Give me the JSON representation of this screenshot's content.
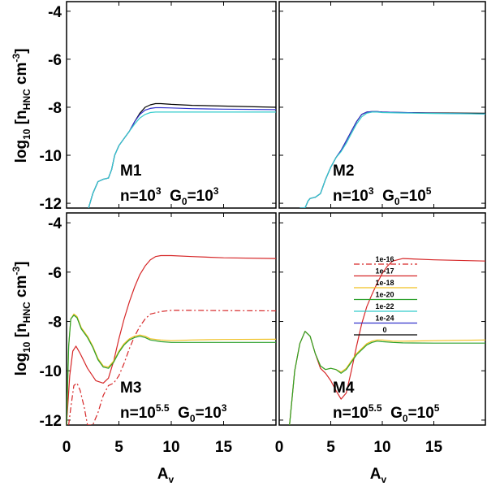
{
  "chart_data": {
    "type": "line",
    "x_label": "A",
    "x_label_sub": "v",
    "y_label_prefix": "log",
    "y_label_sub_10": "10",
    "y_label_main": " [n",
    "y_label_sub_species": "HNC",
    "y_label_unit": " cm",
    "y_label_sup": "-3",
    "y_label_close": "]",
    "xlim": [
      0,
      20
    ],
    "ylim": [
      -12.2,
      -3.6
    ],
    "x_ticks": [
      0,
      5,
      10,
      15
    ],
    "x_tick_labels": [
      "0",
      "5",
      "10",
      "15"
    ],
    "y_ticks": [
      -12,
      -10,
      -8,
      -6,
      -4
    ],
    "y_tick_labels": [
      "-12",
      "-10",
      "-8",
      "-6",
      "-4"
    ],
    "legend": {
      "placement": "right of panel M4",
      "entries": [
        {
          "label": "1e-16",
          "color": "#d62728",
          "dash": "dashdot"
        },
        {
          "label": "1e-17",
          "color": "#d62728",
          "dash": "solid"
        },
        {
          "label": "1e-18",
          "color": "#f0c020",
          "dash": "solid"
        },
        {
          "label": "1e-20",
          "color": "#2ca02c",
          "dash": "solid"
        },
        {
          "label": "1e-22",
          "color": "#33cccc",
          "dash": "solid"
        },
        {
          "label": "1e-24",
          "color": "#3333cc",
          "dash": "solid"
        },
        {
          "label": "0",
          "color": "#000000",
          "dash": "solid"
        }
      ]
    },
    "panels": [
      {
        "id": "M1",
        "model": "M1",
        "n_base": "n=10",
        "n_exp": "3",
        "g_base": "G",
        "g_sub": "0",
        "g_eq": "=10",
        "g_exp": "3",
        "series": [
          {
            "name": "0",
            "color": "#000000",
            "dash": "solid",
            "x": [
              2.1,
              2.5,
              3.0,
              3.5,
              4.0,
              4.3,
              4.6,
              5.0,
              5.5,
              6.0,
              6.5,
              7.0,
              7.5,
              8.0,
              8.5,
              9.0,
              10,
              12,
              15,
              20
            ],
            "y": [
              -12.2,
              -11.6,
              -11.1,
              -11.0,
              -10.95,
              -10.6,
              -10.0,
              -9.6,
              -9.3,
              -9.0,
              -8.6,
              -8.25,
              -8.0,
              -7.9,
              -7.85,
              -7.85,
              -7.88,
              -7.92,
              -7.95,
              -8.0
            ]
          },
          {
            "name": "1e-24",
            "color": "#3333cc",
            "dash": "solid",
            "x": [
              2.1,
              2.5,
              3.0,
              3.5,
              4.0,
              4.3,
              4.6,
              5.0,
              5.5,
              6.0,
              6.5,
              7.0,
              7.5,
              8.0,
              8.5,
              9.0,
              10,
              12,
              15,
              20
            ],
            "y": [
              -12.2,
              -11.6,
              -11.1,
              -11.0,
              -10.95,
              -10.6,
              -10.0,
              -9.6,
              -9.3,
              -9.0,
              -8.6,
              -8.3,
              -8.12,
              -8.05,
              -8.02,
              -8.02,
              -8.03,
              -8.06,
              -8.08,
              -8.1
            ]
          },
          {
            "name": "1e-22",
            "color": "#33cccc",
            "dash": "solid",
            "x": [
              2.1,
              2.5,
              3.0,
              3.5,
              4.0,
              4.3,
              4.6,
              5.0,
              5.5,
              6.0,
              6.5,
              7.0,
              7.5,
              8.0,
              8.5,
              9.0,
              10,
              12,
              15,
              20
            ],
            "y": [
              -12.2,
              -11.6,
              -11.1,
              -11.0,
              -10.95,
              -10.6,
              -10.0,
              -9.6,
              -9.3,
              -9.0,
              -8.7,
              -8.45,
              -8.3,
              -8.22,
              -8.2,
              -8.2,
              -8.2,
              -8.2,
              -8.2,
              -8.2
            ]
          }
        ]
      },
      {
        "id": "M2",
        "model": "M2",
        "n_base": "n=10",
        "n_exp": "3",
        "g_base": "G",
        "g_sub": "0",
        "g_eq": "=10",
        "g_exp": "5",
        "series": [
          {
            "name": "0",
            "color": "#000000",
            "dash": "solid",
            "x": [
              2.0,
              2.5,
              2.8,
              3.0,
              3.5,
              4.0,
              4.5,
              5.0,
              5.5,
              6.0,
              6.5,
              7.0,
              7.5,
              8.0,
              8.5,
              9.0,
              9.5,
              10,
              12,
              15,
              20
            ],
            "y": [
              -12.2,
              -12.2,
              -11.9,
              -11.8,
              -11.75,
              -11.6,
              -11.0,
              -10.5,
              -10.1,
              -9.8,
              -9.4,
              -9.0,
              -8.6,
              -8.3,
              -8.2,
              -8.18,
              -8.18,
              -8.2,
              -8.22,
              -8.24,
              -8.25
            ]
          },
          {
            "name": "1e-24",
            "color": "#3333cc",
            "dash": "solid",
            "x": [
              2.0,
              2.5,
              2.8,
              3.0,
              3.5,
              4.0,
              4.5,
              5.0,
              5.5,
              6.0,
              6.5,
              7.0,
              7.5,
              8.0,
              8.5,
              9.0,
              9.5,
              10,
              12,
              15,
              20
            ],
            "y": [
              -12.2,
              -12.2,
              -11.9,
              -11.8,
              -11.75,
              -11.6,
              -11.0,
              -10.5,
              -10.1,
              -9.8,
              -9.4,
              -9.0,
              -8.6,
              -8.3,
              -8.2,
              -8.18,
              -8.18,
              -8.2,
              -8.22,
              -8.25,
              -8.28
            ]
          },
          {
            "name": "1e-22",
            "color": "#33cccc",
            "dash": "solid",
            "x": [
              2.0,
              2.5,
              2.8,
              3.0,
              3.5,
              4.0,
              4.5,
              5.0,
              5.5,
              6.0,
              6.5,
              7.0,
              7.5,
              8.0,
              8.5,
              9.0,
              9.5,
              10,
              12,
              15,
              20
            ],
            "y": [
              -12.2,
              -12.2,
              -11.9,
              -11.8,
              -11.75,
              -11.6,
              -11.0,
              -10.5,
              -10.1,
              -9.85,
              -9.5,
              -9.1,
              -8.7,
              -8.4,
              -8.25,
              -8.2,
              -8.2,
              -8.22,
              -8.24,
              -8.26,
              -8.28
            ]
          }
        ]
      },
      {
        "id": "M3",
        "model": "M3",
        "n_base": "n=10",
        "n_exp": "5.5",
        "g_base": "G",
        "g_sub": "0",
        "g_eq": "=10",
        "g_exp": "3",
        "series": [
          {
            "name": "1e-16",
            "color": "#d62728",
            "dash": "dashdot",
            "x": [
              0.2,
              0.4,
              0.7,
              1.0,
              1.3,
              1.7,
              2.0,
              2.5,
              3.0,
              3.5,
              4.0,
              4.5,
              5.0,
              5.5,
              6.0,
              6.5,
              7.0,
              7.5,
              8.0,
              9.0,
              10,
              12,
              15,
              20
            ],
            "y": [
              -12.2,
              -11.5,
              -10.6,
              -10.5,
              -10.8,
              -11.5,
              -12.2,
              -12.2,
              -11.7,
              -11.0,
              -10.6,
              -10.5,
              -10.2,
              -9.7,
              -9.1,
              -8.6,
              -8.2,
              -7.9,
              -7.7,
              -7.6,
              -7.55,
              -7.55,
              -7.56,
              -7.57
            ]
          },
          {
            "name": "1e-17",
            "color": "#d62728",
            "dash": "solid",
            "x": [
              0.0,
              0.3,
              0.6,
              0.9,
              1.3,
              2.0,
              2.8,
              3.5,
              4.0,
              4.5,
              5.0,
              5.5,
              6.0,
              6.5,
              7.0,
              7.5,
              8.0,
              8.5,
              9.0,
              10,
              12,
              15,
              20
            ],
            "y": [
              -12.2,
              -10.2,
              -9.2,
              -9.0,
              -9.3,
              -9.9,
              -10.4,
              -10.5,
              -10.3,
              -9.6,
              -8.7,
              -7.9,
              -7.2,
              -6.6,
              -6.1,
              -5.75,
              -5.5,
              -5.37,
              -5.33,
              -5.33,
              -5.37,
              -5.42,
              -5.45
            ]
          },
          {
            "name": "1e-18",
            "color": "#f0c020",
            "dash": "solid",
            "x": [
              0.0,
              0.2,
              0.4,
              0.7,
              1.0,
              1.4,
              2.0,
              2.5,
              3.0,
              3.5,
              4.0,
              4.5,
              5.0,
              5.5,
              6.0,
              6.5,
              7.0,
              7.5,
              8.0,
              9.0,
              10,
              12,
              15,
              20
            ],
            "y": [
              -12.2,
              -9.0,
              -7.9,
              -7.7,
              -7.8,
              -8.25,
              -8.6,
              -9.0,
              -9.5,
              -9.8,
              -9.85,
              -9.6,
              -9.2,
              -8.9,
              -8.7,
              -8.6,
              -8.55,
              -8.6,
              -8.7,
              -8.75,
              -8.78,
              -8.75,
              -8.73,
              -8.72
            ]
          },
          {
            "name": "1e-20",
            "color": "#2ca02c",
            "dash": "solid",
            "x": [
              0.0,
              0.2,
              0.4,
              0.7,
              1.0,
              1.4,
              2.0,
              2.5,
              3.0,
              3.5,
              4.0,
              4.5,
              5.0,
              5.5,
              6.0,
              6.5,
              7.0,
              7.5,
              8.0,
              9.0,
              10,
              12,
              15,
              20
            ],
            "y": [
              -12.2,
              -9.0,
              -7.9,
              -7.75,
              -7.85,
              -8.3,
              -8.65,
              -9.05,
              -9.55,
              -9.85,
              -9.9,
              -9.65,
              -9.25,
              -8.95,
              -8.75,
              -8.65,
              -8.6,
              -8.65,
              -8.75,
              -8.82,
              -8.85,
              -8.85,
              -8.85,
              -8.85
            ]
          }
        ]
      },
      {
        "id": "M4",
        "model": "M4",
        "n_base": "n=10",
        "n_exp": "5.5",
        "g_base": "G",
        "g_sub": "0",
        "g_eq": "=10",
        "g_exp": "5",
        "series": [
          {
            "name": "1e-17",
            "color": "#d62728",
            "dash": "solid",
            "x": [
              1.0,
              1.5,
              2.0,
              2.5,
              3.0,
              3.5,
              4.0,
              4.5,
              5.0,
              5.5,
              6.0,
              6.5,
              7.0,
              7.5,
              8.0,
              8.5,
              9.0,
              9.5,
              10,
              10.5,
              11,
              12,
              15,
              20
            ],
            "y": [
              -12.2,
              -10.0,
              -8.9,
              -8.4,
              -8.6,
              -9.3,
              -9.9,
              -10.1,
              -10.4,
              -10.8,
              -11.15,
              -10.9,
              -10.0,
              -9.0,
              -8.1,
              -7.4,
              -6.9,
              -6.45,
              -6.05,
              -5.75,
              -5.55,
              -5.45,
              -5.5,
              -5.55
            ]
          },
          {
            "name": "1e-18",
            "color": "#f0c020",
            "dash": "solid",
            "x": [
              1.0,
              1.5,
              2.0,
              2.5,
              3.0,
              3.5,
              4.0,
              4.5,
              5.0,
              5.5,
              6.0,
              6.5,
              7.0,
              7.5,
              8.0,
              8.5,
              9.0,
              9.5,
              10,
              11,
              12,
              15,
              20
            ],
            "y": [
              -12.2,
              -10.0,
              -8.9,
              -8.4,
              -8.6,
              -9.3,
              -9.8,
              -9.95,
              -9.9,
              -9.95,
              -10.05,
              -9.9,
              -9.6,
              -9.3,
              -9.1,
              -8.9,
              -8.8,
              -8.75,
              -8.75,
              -8.8,
              -8.8,
              -8.78,
              -8.75
            ]
          },
          {
            "name": "1e-20",
            "color": "#2ca02c",
            "dash": "solid",
            "x": [
              1.0,
              1.5,
              2.0,
              2.5,
              3.0,
              3.5,
              4.0,
              4.5,
              5.0,
              5.5,
              6.0,
              6.5,
              7.0,
              7.5,
              8.0,
              8.5,
              9.0,
              9.5,
              10,
              11,
              12,
              15,
              20
            ],
            "y": [
              -12.2,
              -10.0,
              -8.9,
              -8.4,
              -8.6,
              -9.3,
              -9.8,
              -9.95,
              -9.9,
              -9.95,
              -10.1,
              -9.95,
              -9.65,
              -9.35,
              -9.15,
              -8.95,
              -8.85,
              -8.8,
              -8.82,
              -8.85,
              -8.87,
              -8.88,
              -8.88
            ]
          }
        ]
      }
    ]
  }
}
